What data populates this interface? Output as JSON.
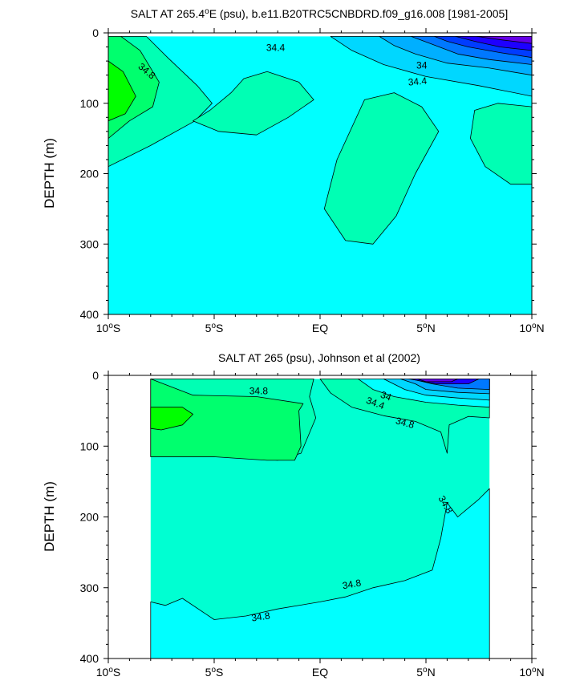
{
  "chart_data": [
    {
      "type": "contour",
      "title": "SALT AT 265.4",
      "title_degree": "o",
      "title_rest": "E (psu), b.e11.B20TRC5CNBDRD.f09_g16.008 [1981-2005]",
      "ylabel": "DEPTH (m)",
      "xlim": [
        -10,
        10
      ],
      "ylim": [
        400,
        0
      ],
      "x_ticks": [
        {
          "value": -10,
          "label": "10",
          "deg": "o",
          "suffix": "S"
        },
        {
          "value": -5,
          "label": "5",
          "deg": "o",
          "suffix": "S"
        },
        {
          "value": 0,
          "label": "EQ",
          "deg": "",
          "suffix": ""
        },
        {
          "value": 5,
          "label": "5",
          "deg": "o",
          "suffix": "N"
        },
        {
          "value": 10,
          "label": "10",
          "deg": "o",
          "suffix": "N"
        }
      ],
      "y_ticks": [
        0,
        100,
        200,
        300,
        400
      ],
      "data_xlim": [
        -10,
        10
      ],
      "background_level": 34.6,
      "regions": [
        {
          "level": 34.8,
          "points": [
            [
              -10,
              5
            ],
            [
              -8.2,
              5
            ],
            [
              -7.2,
              35
            ],
            [
              -5.8,
              75
            ],
            [
              -5.1,
              100
            ],
            [
              -5.9,
              125
            ],
            [
              -8,
              160
            ],
            [
              -10,
              190
            ]
          ]
        },
        {
          "level": 35.0,
          "points": [
            [
              -10,
              5
            ],
            [
              -9.4,
              5
            ],
            [
              -8.5,
              25
            ],
            [
              -7.6,
              70
            ],
            [
              -7.9,
              105
            ],
            [
              -9,
              125
            ],
            [
              -10,
              150
            ]
          ]
        },
        {
          "level": 35.2,
          "points": [
            [
              -10,
              40
            ],
            [
              -9.3,
              55
            ],
            [
              -8.7,
              90
            ],
            [
              -9.2,
              115
            ],
            [
              -10,
              125
            ]
          ]
        },
        {
          "level": 34.8,
          "points": [
            [
              -3.6,
              65
            ],
            [
              -2.5,
              55
            ],
            [
              -1,
              70
            ],
            [
              -0.3,
              95
            ],
            [
              -1.5,
              120
            ],
            [
              -3,
              145
            ],
            [
              -4.8,
              140
            ],
            [
              -6,
              125
            ],
            [
              -5.2,
              110
            ],
            [
              -4.2,
              85
            ]
          ]
        },
        {
          "level": 34.8,
          "points": [
            [
              2.1,
              95
            ],
            [
              3.5,
              85
            ],
            [
              4.8,
              105
            ],
            [
              5.6,
              140
            ],
            [
              4.5,
              200
            ],
            [
              3.6,
              260
            ],
            [
              2.5,
              300
            ],
            [
              1.2,
              295
            ],
            [
              0.2,
              250
            ],
            [
              0.8,
              180
            ]
          ]
        },
        {
          "level": 34.8,
          "points": [
            [
              7.3,
              110
            ],
            [
              8.4,
              100
            ],
            [
              10,
              105
            ],
            [
              10,
              215
            ],
            [
              9,
              215
            ],
            [
              7.8,
              190
            ],
            [
              7.1,
              150
            ]
          ]
        },
        {
          "level": 34.4,
          "points": [
            [
              0.5,
              5
            ],
            [
              10,
              5
            ],
            [
              10,
              90
            ],
            [
              7.5,
              75
            ],
            [
              5,
              62
            ],
            [
              3,
              45
            ],
            [
              1.5,
              25
            ]
          ]
        },
        {
          "level": 34.2,
          "points": [
            [
              2.8,
              5
            ],
            [
              10,
              5
            ],
            [
              10,
              60
            ],
            [
              8,
              50
            ],
            [
              6,
              43
            ],
            [
              4.5,
              30
            ],
            [
              3.5,
              18
            ]
          ]
        },
        {
          "level": 34.0,
          "points": [
            [
              4.3,
              5
            ],
            [
              10,
              5
            ],
            [
              10,
              45
            ],
            [
              8,
              38
            ],
            [
              6.5,
              30
            ],
            [
              5.2,
              15
            ]
          ]
        },
        {
          "level": 33.8,
          "points": [
            [
              5.4,
              5
            ],
            [
              10,
              5
            ],
            [
              10,
              35
            ],
            [
              8.5,
              28
            ],
            [
              7,
              20
            ],
            [
              6,
              12
            ]
          ]
        },
        {
          "level": 33.6,
          "points": [
            [
              6.4,
              5
            ],
            [
              10,
              5
            ],
            [
              10,
              25
            ],
            [
              8.5,
              20
            ],
            [
              7.3,
              12
            ]
          ]
        },
        {
          "level": 33.4,
          "points": [
            [
              7.4,
              5
            ],
            [
              10,
              5
            ],
            [
              10,
              15
            ],
            [
              8.6,
              10
            ]
          ]
        }
      ],
      "contour_labels": [
        {
          "text": "34.4",
          "x": -2.1,
          "y": 22,
          "angle": 0
        },
        {
          "text": "34.8",
          "x": -8.2,
          "y": 55,
          "angle": 40
        },
        {
          "text": "34",
          "x": 4.8,
          "y": 47,
          "angle": 0
        },
        {
          "text": "34.4",
          "x": 4.6,
          "y": 70,
          "angle": -5
        }
      ]
    },
    {
      "type": "contour",
      "title": "SALT AT 265 (psu), Johnson et al (2002)",
      "ylabel": "DEPTH (m)",
      "xlim": [
        -10,
        10
      ],
      "ylim": [
        400,
        0
      ],
      "x_ticks": [
        {
          "value": -10,
          "label": "10",
          "deg": "o",
          "suffix": "S"
        },
        {
          "value": -5,
          "label": "5",
          "deg": "o",
          "suffix": "S"
        },
        {
          "value": 0,
          "label": "EQ",
          "deg": "",
          "suffix": ""
        },
        {
          "value": 5,
          "label": "5",
          "deg": "o",
          "suffix": "N"
        },
        {
          "value": 10,
          "label": "10",
          "deg": "o",
          "suffix": "N"
        }
      ],
      "y_ticks": [
        0,
        100,
        200,
        300,
        400
      ],
      "data_xlim": [
        -8,
        8
      ],
      "background_level": 34.7,
      "regions": [
        {
          "level": 34.8,
          "points": [
            [
              -8,
              5
            ],
            [
              -0.3,
              5
            ],
            [
              -0.5,
              30
            ],
            [
              -0.2,
              60
            ],
            [
              -0.9,
              110
            ],
            [
              -2,
              120
            ],
            [
              -4,
              115
            ],
            [
              -8,
              115
            ]
          ]
        },
        {
          "level": 35.0,
          "points": [
            [
              -8,
              5
            ],
            [
              -8,
              115
            ],
            [
              -5,
              115
            ],
            [
              -2.5,
              120
            ],
            [
              -1.2,
              120
            ],
            [
              -0.9,
              100
            ],
            [
              -1,
              50
            ],
            [
              -0.8,
              40
            ],
            [
              -3,
              30
            ],
            [
              -6,
              28
            ]
          ]
        },
        {
          "level": 35.2,
          "points": [
            [
              -8,
              45
            ],
            [
              -6.5,
              45
            ],
            [
              -6,
              55
            ],
            [
              -6.5,
              70
            ],
            [
              -7.5,
              77
            ],
            [
              -8,
              75
            ]
          ]
        },
        {
          "level": 34.6,
          "points": [
            [
              -8,
              320
            ],
            [
              -7.3,
              325
            ],
            [
              -6.5,
              315
            ],
            [
              -5,
              345
            ],
            [
              -3.5,
              340
            ],
            [
              -2,
              330
            ],
            [
              0,
              320
            ],
            [
              1.2,
              313
            ],
            [
              2.5,
              300
            ],
            [
              4,
              290
            ],
            [
              5.3,
              275
            ],
            [
              5.7,
              230
            ],
            [
              6,
              180
            ],
            [
              6.5,
              200
            ],
            [
              7.5,
              175
            ],
            [
              8,
              160
            ],
            [
              8,
              400
            ],
            [
              -8,
              400
            ]
          ]
        },
        {
          "level": 34.8,
          "points": [
            [
              0,
              5
            ],
            [
              8,
              5
            ],
            [
              8,
              60
            ],
            [
              7,
              58
            ],
            [
              6.1,
              70
            ],
            [
              6,
              110
            ],
            [
              5.7,
              80
            ],
            [
              4.5,
              65
            ],
            [
              3,
              57
            ],
            [
              1.5,
              45
            ],
            [
              0.5,
              25
            ]
          ]
        },
        {
          "level": 34.6,
          "points": [
            [
              1.8,
              5
            ],
            [
              8,
              5
            ],
            [
              8,
              45
            ],
            [
              6.5,
              42
            ],
            [
              5,
              38
            ],
            [
              3.5,
              30
            ],
            [
              2.5,
              20
            ]
          ]
        },
        {
          "level": 34.4,
          "points": [
            [
              3,
              5
            ],
            [
              8,
              5
            ],
            [
              8,
              35
            ],
            [
              6.5,
              32
            ],
            [
              5,
              28
            ],
            [
              4,
              20
            ]
          ]
        },
        {
          "level": 34.2,
          "points": [
            [
              3.8,
              5
            ],
            [
              8,
              5
            ],
            [
              8,
              26
            ],
            [
              6.5,
              24
            ],
            [
              5,
              20
            ],
            [
              4.5,
              12
            ]
          ]
        },
        {
          "level": 34.0,
          "points": [
            [
              4.3,
              5
            ],
            [
              8,
              5
            ],
            [
              8,
              20
            ],
            [
              6.5,
              18
            ],
            [
              5.3,
              12
            ]
          ]
        },
        {
          "level": 33.6,
          "points": [
            [
              4.2,
              5
            ],
            [
              7.5,
              5
            ],
            [
              7,
              12
            ],
            [
              5.5,
              12
            ]
          ]
        },
        {
          "level": 33.4,
          "points": [
            [
              4.6,
              5
            ],
            [
              6.5,
              5
            ],
            [
              6.2,
              9
            ],
            [
              5,
              9
            ]
          ]
        }
      ],
      "contour_labels": [
        {
          "text": "34.8",
          "x": -2.9,
          "y": 23,
          "angle": 0
        },
        {
          "text": "34",
          "x": 3.1,
          "y": 30,
          "angle": 20
        },
        {
          "text": "34.4",
          "x": 2.6,
          "y": 40,
          "angle": 20
        },
        {
          "text": "34.8",
          "x": 4,
          "y": 68,
          "angle": 15
        },
        {
          "text": "34.8",
          "x": 5.9,
          "y": 183,
          "angle": 60
        },
        {
          "text": "34.8",
          "x": 1.5,
          "y": 296,
          "angle": -10
        },
        {
          "text": "34.8",
          "x": -2.8,
          "y": 342,
          "angle": -8
        }
      ]
    }
  ]
}
